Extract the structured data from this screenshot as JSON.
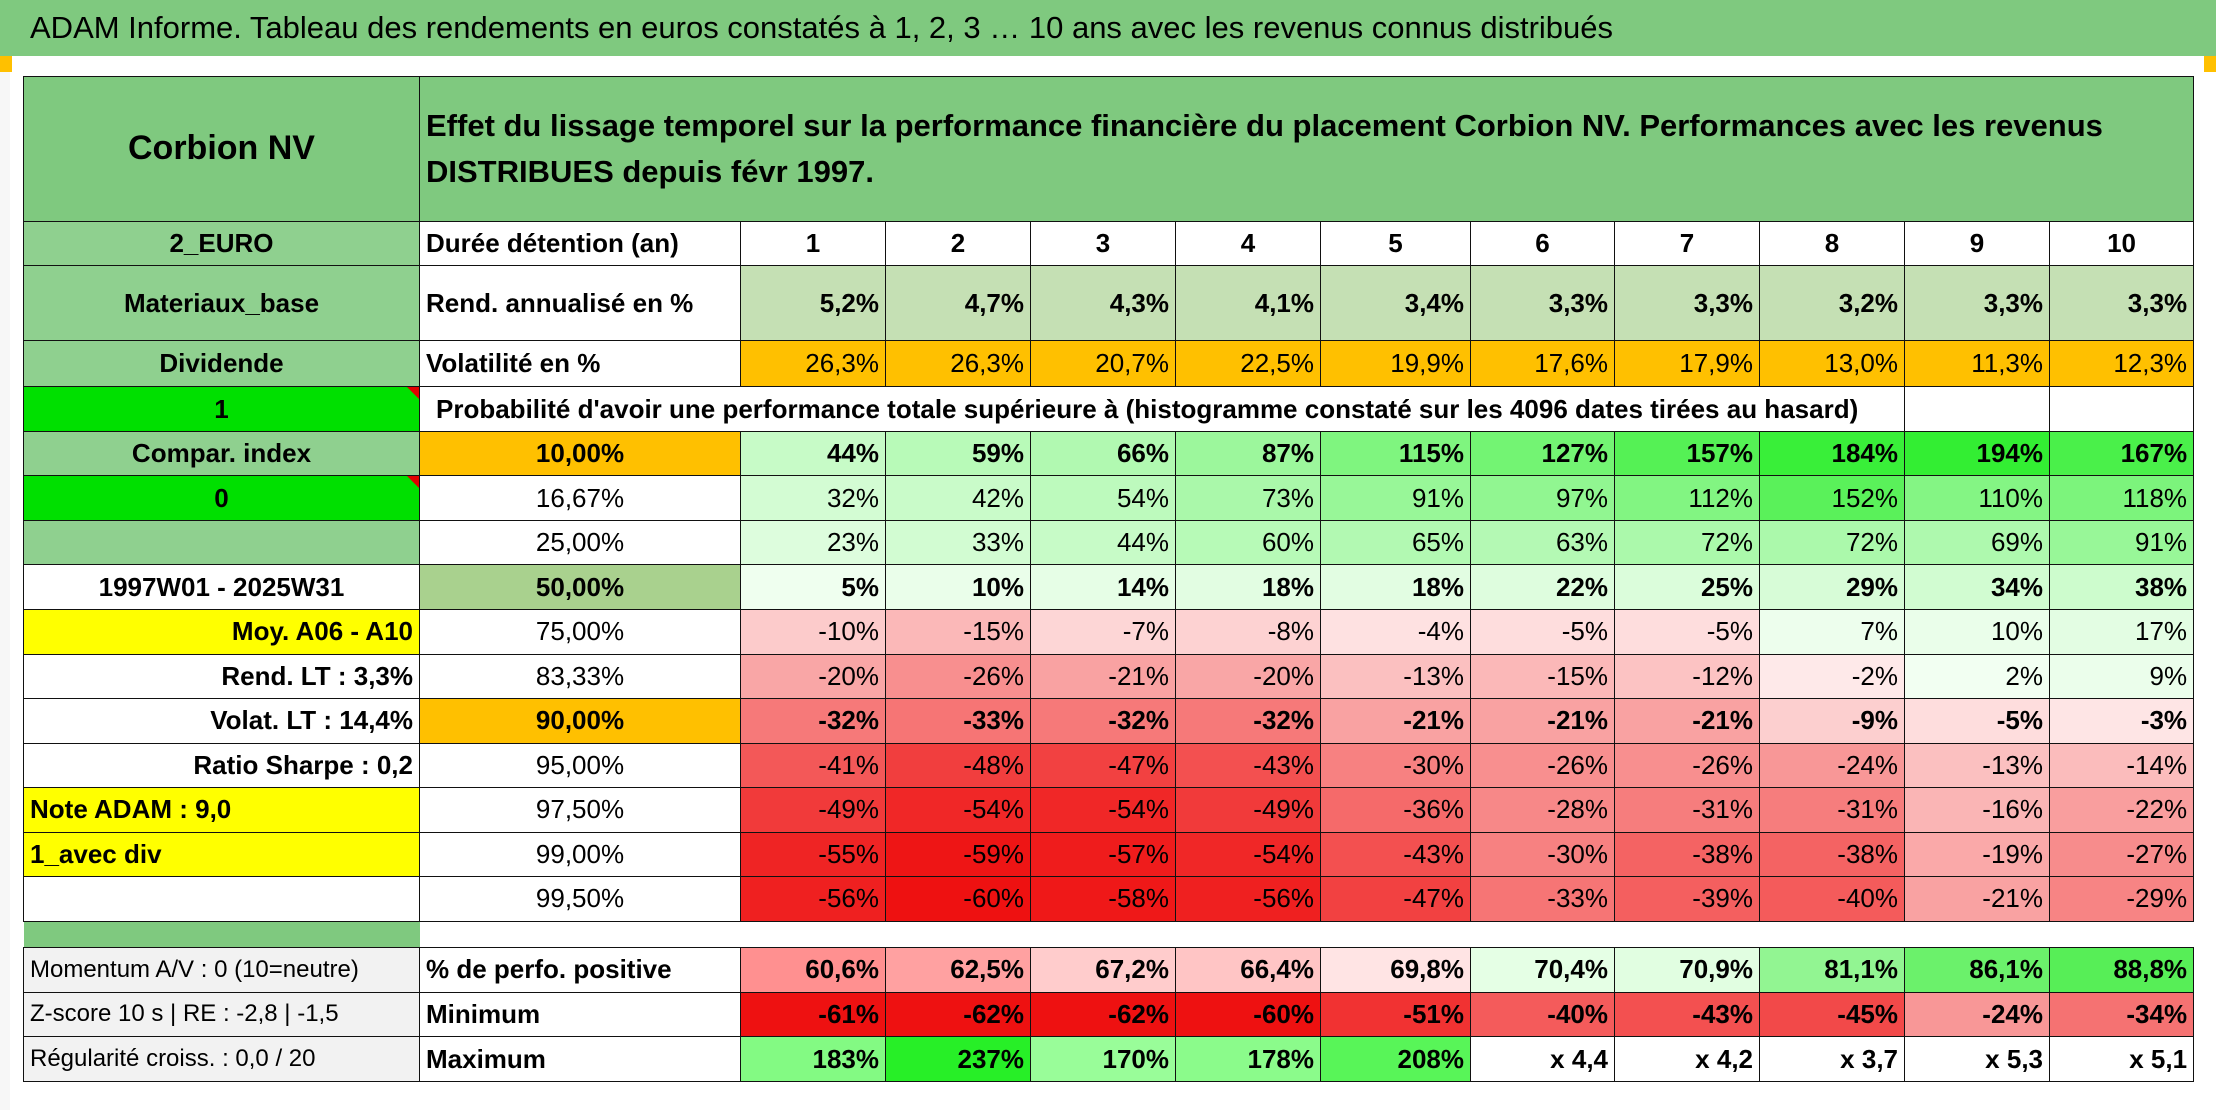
{
  "banner": "ADAM Informe. Tableau des rendements en euros constatés à 1, 2, 3 … 10 ans avec les revenus connus distribués",
  "side": {
    "name": "Corbion NV",
    "currency": "2_EURO",
    "sector": "Materiaux_base",
    "dividend_label": "Dividende",
    "dividend_value": "1",
    "compar_label": "Compar. index",
    "compar_value": "0",
    "period": "1997W01 - 2025W31",
    "moy": "Moy. A06 - A10",
    "rend_lt": "Rend. LT :   3,3%",
    "volat_lt": "Volat. LT :   14,4%",
    "sharpe": "Ratio Sharpe :    0,2",
    "note": "Note ADAM : 9,0",
    "div_mode": "1_avec div",
    "momentum": "Momentum A/V : 0 (10=neutre)",
    "zscore": "Z-score 10 s | RE : -2,8 | -1,5",
    "regularite": "Régularité croiss. : 0,0 / 20"
  },
  "title": "Effet du lissage temporel sur la performance financière du placement Corbion NV. Performances avec les revenus DISTRIBUES depuis févr 1997.",
  "duration_label": "Durée détention (an)",
  "years": [
    "1",
    "2",
    "3",
    "4",
    "5",
    "6",
    "7",
    "8",
    "9",
    "10"
  ],
  "rend_label": "Rend. annualisé en %",
  "rend": [
    "5,2%",
    "4,7%",
    "4,3%",
    "4,1%",
    "3,4%",
    "3,3%",
    "3,3%",
    "3,2%",
    "3,3%",
    "3,3%"
  ],
  "vol_label": "Volatilité en %",
  "vol": [
    "26,3%",
    "26,3%",
    "20,7%",
    "22,5%",
    "19,9%",
    "17,6%",
    "17,9%",
    "13,0%",
    "11,3%",
    "12,3%"
  ],
  "prob_label": "Probabilité d'avoir une performance totale supérieure à (histogramme constaté sur les 4096 dates tirées au hasard)",
  "prob_rows": [
    {
      "p": "10,00%",
      "v": [
        "44%",
        "59%",
        "66%",
        "87%",
        "115%",
        "127%",
        "157%",
        "184%",
        "194%",
        "167%"
      ]
    },
    {
      "p": "16,67%",
      "v": [
        "32%",
        "42%",
        "54%",
        "73%",
        "91%",
        "97%",
        "112%",
        "152%",
        "110%",
        "118%"
      ]
    },
    {
      "p": "25,00%",
      "v": [
        "23%",
        "33%",
        "44%",
        "60%",
        "65%",
        "63%",
        "72%",
        "72%",
        "69%",
        "91%"
      ]
    },
    {
      "p": "50,00%",
      "v": [
        "5%",
        "10%",
        "14%",
        "18%",
        "18%",
        "22%",
        "25%",
        "29%",
        "34%",
        "38%"
      ]
    },
    {
      "p": "75,00%",
      "v": [
        "-10%",
        "-15%",
        "-7%",
        "-8%",
        "-4%",
        "-5%",
        "-5%",
        "7%",
        "10%",
        "17%"
      ]
    },
    {
      "p": "83,33%",
      "v": [
        "-20%",
        "-26%",
        "-21%",
        "-20%",
        "-13%",
        "-15%",
        "-12%",
        "-2%",
        "2%",
        "9%"
      ]
    },
    {
      "p": "90,00%",
      "v": [
        "-32%",
        "-33%",
        "-32%",
        "-32%",
        "-21%",
        "-21%",
        "-21%",
        "-9%",
        "-5%",
        "-3%"
      ]
    },
    {
      "p": "95,00%",
      "v": [
        "-41%",
        "-48%",
        "-47%",
        "-43%",
        "-30%",
        "-26%",
        "-26%",
        "-24%",
        "-13%",
        "-14%"
      ]
    },
    {
      "p": "97,50%",
      "v": [
        "-49%",
        "-54%",
        "-54%",
        "-49%",
        "-36%",
        "-28%",
        "-31%",
        "-31%",
        "-16%",
        "-22%"
      ]
    },
    {
      "p": "99,00%",
      "v": [
        "-55%",
        "-59%",
        "-57%",
        "-54%",
        "-43%",
        "-30%",
        "-38%",
        "-38%",
        "-19%",
        "-27%"
      ]
    },
    {
      "p": "99,50%",
      "v": [
        "-56%",
        "-60%",
        "-58%",
        "-56%",
        "-47%",
        "-33%",
        "-39%",
        "-40%",
        "-21%",
        "-29%"
      ]
    }
  ],
  "pos_label": "% de perfo. positive",
  "pos": [
    "60,6%",
    "62,5%",
    "67,2%",
    "66,4%",
    "69,8%",
    "70,4%",
    "70,9%",
    "81,1%",
    "86,1%",
    "88,8%"
  ],
  "min_label": "Minimum",
  "min": [
    "-61%",
    "-62%",
    "-62%",
    "-60%",
    "-51%",
    "-40%",
    "-43%",
    "-45%",
    "-24%",
    "-34%"
  ],
  "max_label": "Maximum",
  "max": [
    "183%",
    "237%",
    "170%",
    "178%",
    "208%",
    "x 4,4",
    "x 4,2",
    "x 3,7",
    "x 5,3",
    "x 5,1"
  ],
  "colors": {
    "header_green": "#7fc97f",
    "label_green": "#8fd08f",
    "bright_green": "#00e000",
    "yellow": "#ffff00",
    "orange": "#ffc000",
    "rend_green": "#c5e0b4",
    "median_green": "#a9d18e",
    "row_gap_green": "#7fc97f"
  }
}
